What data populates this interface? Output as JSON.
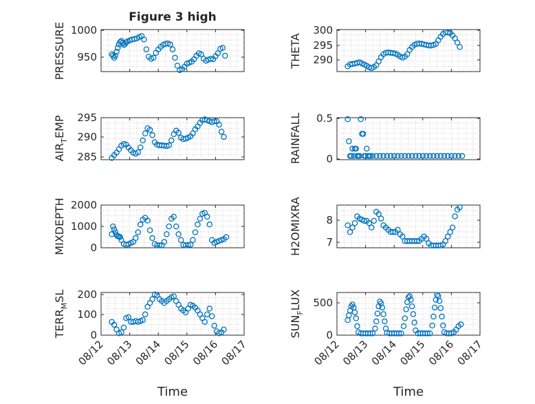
{
  "colors": {
    "marker": "#0072BD",
    "axis": "#262626",
    "grid": "#bdbdbd"
  },
  "chart_data": [
    {
      "type": "scatter",
      "title": "Figure 3 high",
      "ylabel": "PRESSURE",
      "xlim": [
        "08/12",
        "08/17"
      ],
      "ylim": [
        920,
        1005
      ],
      "yticks": [
        950,
        1000
      ],
      "x": [
        "08/12 09:00",
        "08/12 10:00",
        "08/12 11:00",
        "08/12 12:00",
        "08/12 13:00",
        "08/12 14:00",
        "08/12 15:00",
        "08/12 16:00",
        "08/12 17:00",
        "08/12 18:00",
        "08/12 19:00",
        "08/12 20:00",
        "08/12 21:00",
        "08/12 22:00",
        "08/13 00:00",
        "08/13 02:00",
        "08/13 04:00",
        "08/13 06:00",
        "08/13 08:00",
        "08/13 10:00",
        "08/13 12:00",
        "08/13 14:00",
        "08/13 16:00",
        "08/13 18:00",
        "08/13 20:00",
        "08/13 22:00",
        "08/14 00:00",
        "08/14 02:00",
        "08/14 04:00",
        "08/14 06:00",
        "08/14 08:00",
        "08/14 10:00",
        "08/14 12:00",
        "08/14 14:00",
        "08/14 16:00",
        "08/14 18:00",
        "08/14 20:00",
        "08/14 22:00",
        "08/15 00:00",
        "08/15 02:00",
        "08/15 04:00",
        "08/15 06:00",
        "08/15 08:00",
        "08/15 10:00",
        "08/15 12:00",
        "08/15 14:00",
        "08/15 16:00",
        "08/15 18:00",
        "08/15 20:00",
        "08/15 22:00",
        "08/16 00:00",
        "08/16 02:00",
        "08/16 04:00",
        "08/16 06:00",
        "08/16 08:00"
      ],
      "y": [
        955,
        952,
        948,
        952,
        960,
        968,
        975,
        980,
        982,
        978,
        974,
        976,
        979,
        981,
        983,
        985,
        986,
        987,
        990,
        992,
        985,
        965,
        950,
        946,
        948,
        958,
        965,
        970,
        974,
        976,
        977,
        975,
        965,
        948,
        932,
        923,
        925,
        930,
        936,
        938,
        940,
        945,
        952,
        957,
        955,
        946,
        942,
        944,
        946,
        945,
        951,
        957,
        966,
        968,
        952
      ]
    },
    {
      "type": "scatter",
      "ylabel": "THETA",
      "xlim": [
        "08/12",
        "08/17"
      ],
      "ylim": [
        286,
        300.5
      ],
      "yticks": [
        290,
        295,
        300
      ],
      "x": [
        "08/12 09:00",
        "08/12 11:00",
        "08/12 13:00",
        "08/12 15:00",
        "08/12 17:00",
        "08/12 19:00",
        "08/12 21:00",
        "08/12 23:00",
        "08/13 01:00",
        "08/13 03:00",
        "08/13 05:00",
        "08/13 07:00",
        "08/13 09:00",
        "08/13 11:00",
        "08/13 13:00",
        "08/13 15:00",
        "08/13 17:00",
        "08/13 19:00",
        "08/13 21:00",
        "08/13 23:00",
        "08/14 01:00",
        "08/14 03:00",
        "08/14 05:00",
        "08/14 07:00",
        "08/14 09:00",
        "08/14 11:00",
        "08/14 13:00",
        "08/14 15:00",
        "08/14 17:00",
        "08/14 19:00",
        "08/14 21:00",
        "08/14 23:00",
        "08/15 01:00",
        "08/15 03:00",
        "08/15 05:00",
        "08/15 07:00",
        "08/15 09:00",
        "08/15 11:00",
        "08/15 13:00",
        "08/15 15:00",
        "08/15 17:00",
        "08/15 19:00",
        "08/15 21:00",
        "08/15 23:00",
        "08/16 01:00",
        "08/16 03:00",
        "08/16 05:00",
        "08/16 07:00"
      ],
      "y": [
        287.8,
        288.5,
        288.6,
        288.8,
        289,
        289.2,
        288.8,
        288.4,
        288,
        287.5,
        287.2,
        287.6,
        288.2,
        289.5,
        291,
        292,
        292.5,
        292.6,
        292.5,
        292.4,
        292.2,
        291.8,
        291.2,
        290.8,
        291.2,
        292,
        293.5,
        294.5,
        295.2,
        295.6,
        295.7,
        295.6,
        295.4,
        295.2,
        295,
        295,
        295.2,
        295.6,
        296.8,
        298,
        299,
        299.6,
        299.5,
        299.3,
        298.5,
        297.5,
        296,
        294.5
      ]
    },
    {
      "type": "scatter",
      "ylabel": "AIR_TEMP",
      "xlim": [
        "08/12",
        "08/17"
      ],
      "ylim": [
        283.5,
        295.5
      ],
      "yticks": [
        285,
        290,
        295
      ],
      "x": [
        "08/12 09:00",
        "08/12 11:00",
        "08/12 13:00",
        "08/12 15:00",
        "08/12 17:00",
        "08/12 19:00",
        "08/12 21:00",
        "08/12 23:00",
        "08/13 01:00",
        "08/13 03:00",
        "08/13 05:00",
        "08/13 07:00",
        "08/13 09:00",
        "08/13 11:00",
        "08/13 13:00",
        "08/13 15:00",
        "08/13 17:00",
        "08/13 19:00",
        "08/13 21:00",
        "08/13 23:00",
        "08/14 01:00",
        "08/14 03:00",
        "08/14 05:00",
        "08/14 07:00",
        "08/14 09:00",
        "08/14 11:00",
        "08/14 13:00",
        "08/14 15:00",
        "08/14 17:00",
        "08/14 19:00",
        "08/14 21:00",
        "08/14 23:00",
        "08/15 01:00",
        "08/15 03:00",
        "08/15 05:00",
        "08/15 07:00",
        "08/15 09:00",
        "08/15 11:00",
        "08/15 13:00",
        "08/15 15:00",
        "08/15 17:00",
        "08/15 19:00",
        "08/15 21:00",
        "08/15 23:00",
        "08/16 01:00",
        "08/16 03:00",
        "08/16 05:00",
        "08/16 07:00"
      ],
      "y": [
        284,
        284.8,
        285.5,
        286.5,
        287.5,
        288,
        287.8,
        287,
        286.2,
        285.5,
        285.2,
        285.6,
        287,
        289,
        291,
        292.5,
        292,
        290.5,
        288.5,
        287.8,
        287.6,
        287.6,
        287.5,
        287.4,
        287.6,
        289,
        290.8,
        291.8,
        291.2,
        289.8,
        289.4,
        289.5,
        289.8,
        290.2,
        291,
        292.2,
        293,
        294,
        294.8,
        295,
        294.8,
        294.5,
        294.2,
        294.5,
        294.5,
        293.5,
        291.5,
        290
      ]
    },
    {
      "type": "scatter",
      "ylabel": "RAINFALL",
      "xlim": [
        "08/12",
        "08/17"
      ],
      "ylim": [
        -0.05,
        0.52
      ],
      "yticks": [
        0,
        0.5
      ],
      "x": [
        "08/12 09:00",
        "08/12 10:00",
        "08/12 11:00",
        "08/12 12:00",
        "08/12 13:00",
        "08/12 14:00",
        "08/12 15:00",
        "08/12 16:00",
        "08/12 17:00",
        "08/12 18:00",
        "08/12 19:00",
        "08/12 20:00",
        "08/12 21:00",
        "08/12 22:00",
        "08/12 23:00",
        "08/13 00:00",
        "08/13 01:00",
        "08/13 02:00",
        "08/13 03:00",
        "08/13 04:00",
        "08/13 06:00",
        "08/13 09:00",
        "08/13 12:00",
        "08/13 15:00",
        "08/13 18:00",
        "08/13 21:00",
        "08/14 00:00",
        "08/14 03:00",
        "08/14 06:00",
        "08/14 09:00",
        "08/14 12:00",
        "08/14 15:00",
        "08/14 18:00",
        "08/14 21:00",
        "08/15 00:00",
        "08/15 03:00",
        "08/15 06:00",
        "08/15 09:00",
        "08/15 12:00",
        "08/15 15:00",
        "08/15 18:00",
        "08/15 21:00",
        "08/16 00:00",
        "08/16 03:00",
        "08/16 06:00",
        "08/16 09:00"
      ],
      "y": [
        0.5,
        0.2,
        0,
        0,
        0.1,
        0,
        0.1,
        0.1,
        0,
        0,
        0,
        0.5,
        0.3,
        0.3,
        0,
        0,
        0.1,
        0,
        0,
        0,
        0,
        0,
        0,
        0,
        0,
        0,
        0,
        0,
        0,
        0,
        0,
        0,
        0,
        0,
        0,
        0,
        0,
        0,
        0,
        0,
        0,
        0,
        0,
        0,
        0,
        0
      ]
    },
    {
      "type": "scatter",
      "ylabel": "MIXDEPTH",
      "xlim": [
        "08/12",
        "08/17"
      ],
      "ylim": [
        -100,
        2100
      ],
      "yticks": [
        0,
        1000,
        2000
      ],
      "x": [
        "08/12 09:00",
        "08/12 10:00",
        "08/12 11:00",
        "08/12 12:00",
        "08/12 13:00",
        "08/12 14:00",
        "08/12 15:00",
        "08/12 16:00",
        "08/12 17:00",
        "08/12 19:00",
        "08/12 21:00",
        "08/12 23:00",
        "08/13 01:00",
        "08/13 03:00",
        "08/13 05:00",
        "08/13 07:00",
        "08/13 09:00",
        "08/13 11:00",
        "08/13 13:00",
        "08/13 15:00",
        "08/13 17:00",
        "08/13 19:00",
        "08/13 21:00",
        "08/13 23:00",
        "08/14 01:00",
        "08/14 03:00",
        "08/14 05:00",
        "08/14 07:00",
        "08/14 09:00",
        "08/14 11:00",
        "08/14 13:00",
        "08/14 15:00",
        "08/14 17:00",
        "08/14 19:00",
        "08/14 21:00",
        "08/14 23:00",
        "08/15 01:00",
        "08/15 03:00",
        "08/15 05:00",
        "08/15 07:00",
        "08/15 09:00",
        "08/15 11:00",
        "08/15 13:00",
        "08/15 15:00",
        "08/15 17:00",
        "08/15 19:00",
        "08/15 21:00",
        "08/15 23:00",
        "08/16 01:00",
        "08/16 03:00",
        "08/16 05:00",
        "08/16 07:00",
        "08/16 09:00"
      ],
      "y": [
        600,
        1000,
        850,
        700,
        550,
        500,
        480,
        450,
        300,
        100,
        60,
        80,
        150,
        200,
        400,
        700,
        1100,
        1350,
        1450,
        1300,
        800,
        400,
        100,
        30,
        20,
        30,
        200,
        600,
        1000,
        1400,
        1500,
        1000,
        600,
        300,
        50,
        30,
        40,
        60,
        300,
        700,
        1100,
        1400,
        1650,
        1700,
        1500,
        1100,
        300,
        150,
        200,
        250,
        300,
        350,
        450
      ]
    },
    {
      "type": "scatter",
      "ylabel": "H2OMIXRA",
      "xlim": [
        "08/12",
        "08/17"
      ],
      "ylim": [
        6.8,
        8.7
      ],
      "yticks": [
        7,
        8
      ],
      "x": [
        "08/12 09:00",
        "08/12 11:00",
        "08/12 13:00",
        "08/12 15:00",
        "08/12 17:00",
        "08/12 19:00",
        "08/12 21:00",
        "08/12 23:00",
        "08/13 01:00",
        "08/13 03:00",
        "08/13 05:00",
        "08/13 07:00",
        "08/13 09:00",
        "08/13 11:00",
        "08/13 13:00",
        "08/13 15:00",
        "08/13 17:00",
        "08/13 19:00",
        "08/13 21:00",
        "08/13 23:00",
        "08/14 01:00",
        "08/14 03:00",
        "08/14 05:00",
        "08/14 07:00",
        "08/14 09:00",
        "08/14 11:00",
        "08/14 13:00",
        "08/14 15:00",
        "08/14 17:00",
        "08/14 19:00",
        "08/14 21:00",
        "08/14 23:00",
        "08/15 01:00",
        "08/15 03:00",
        "08/15 05:00",
        "08/15 07:00",
        "08/15 09:00",
        "08/15 11:00",
        "08/15 13:00",
        "08/15 15:00",
        "08/15 17:00",
        "08/15 19:00",
        "08/15 21:00",
        "08/15 23:00",
        "08/16 01:00",
        "08/16 03:00",
        "08/16 05:00",
        "08/16 07:00"
      ],
      "y": [
        7.8,
        7.5,
        7.7,
        7.9,
        8.2,
        8.1,
        8.05,
        8.0,
        8.0,
        7.9,
        7.7,
        8.0,
        8.4,
        8.3,
        8.1,
        7.8,
        7.7,
        7.6,
        7.5,
        7.5,
        7.5,
        7.6,
        7.4,
        7.3,
        7.1,
        7.1,
        7.1,
        7.1,
        7.1,
        7.1,
        7.1,
        7.2,
        7.3,
        7.2,
        7.0,
        6.9,
        6.9,
        6.9,
        6.9,
        6.9,
        6.95,
        7.1,
        7.3,
        7.5,
        7.7,
        8.2,
        8.5,
        8.6
      ]
    },
    {
      "type": "scatter",
      "ylabel": "TERR_MSL",
      "xlim": [
        "08/12",
        "08/17"
      ],
      "ylim": [
        -10,
        215
      ],
      "yticks": [
        0,
        100,
        200
      ],
      "x": [
        "08/12 09:00",
        "08/12 11:00",
        "08/12 13:00",
        "08/12 15:00",
        "08/12 17:00",
        "08/12 19:00",
        "08/12 21:00",
        "08/12 23:00",
        "08/13 01:00",
        "08/13 03:00",
        "08/13 05:00",
        "08/13 07:00",
        "08/13 09:00",
        "08/13 11:00",
        "08/13 13:00",
        "08/13 15:00",
        "08/13 17:00",
        "08/13 19:00",
        "08/13 21:00",
        "08/13 23:00",
        "08/14 01:00",
        "08/14 03:00",
        "08/14 05:00",
        "08/14 07:00",
        "08/14 09:00",
        "08/14 11:00",
        "08/14 13:00",
        "08/14 15:00",
        "08/14 17:00",
        "08/14 19:00",
        "08/14 21:00",
        "08/14 23:00",
        "08/15 01:00",
        "08/15 03:00",
        "08/15 05:00",
        "08/15 07:00",
        "08/15 09:00",
        "08/15 11:00",
        "08/15 13:00",
        "08/15 15:00",
        "08/15 17:00",
        "08/15 19:00",
        "08/15 21:00",
        "08/15 23:00",
        "08/16 01:00",
        "08/16 03:00",
        "08/16 05:00",
        "08/16 07:00"
      ],
      "y": [
        60,
        45,
        20,
        0,
        5,
        30,
        80,
        85,
        60,
        60,
        65,
        60,
        65,
        70,
        100,
        140,
        160,
        180,
        205,
        200,
        180,
        170,
        160,
        170,
        180,
        190,
        195,
        170,
        150,
        130,
        120,
        110,
        130,
        150,
        145,
        135,
        120,
        100,
        80,
        60,
        100,
        130,
        90,
        40,
        10,
        0,
        5,
        20
      ]
    },
    {
      "type": "scatter",
      "ylabel": "SUN_FLUX",
      "xlim": [
        "08/12",
        "08/17"
      ],
      "ylim": [
        -30,
        680
      ],
      "yticks": [
        0,
        500
      ],
      "x": [
        "08/12 09:00",
        "08/12 10:00",
        "08/12 11:00",
        "08/12 12:00",
        "08/12 13:00",
        "08/12 14:00",
        "08/12 15:00",
        "08/12 16:00",
        "08/12 17:00",
        "08/12 18:00",
        "08/12 20:00",
        "08/12 22:00",
        "08/13 00:00",
        "08/13 02:00",
        "08/13 04:00",
        "08/13 06:00",
        "08/13 08:00",
        "08/13 09:00",
        "08/13 10:00",
        "08/13 11:00",
        "08/13 12:00",
        "08/13 13:00",
        "08/13 14:00",
        "08/13 15:00",
        "08/13 16:00",
        "08/13 17:00",
        "08/13 18:00",
        "08/13 20:00",
        "08/13 22:00",
        "08/14 00:00",
        "08/14 02:00",
        "08/14 04:00",
        "08/14 06:00",
        "08/14 08:00",
        "08/14 09:00",
        "08/14 10:00",
        "08/14 11:00",
        "08/14 12:00",
        "08/14 13:00",
        "08/14 14:00",
        "08/14 15:00",
        "08/14 16:00",
        "08/14 17:00",
        "08/14 18:00",
        "08/14 20:00",
        "08/14 22:00",
        "08/15 00:00",
        "08/15 02:00",
        "08/15 04:00",
        "08/15 06:00",
        "08/15 08:00",
        "08/15 09:00",
        "08/15 10:00",
        "08/15 11:00",
        "08/15 12:00",
        "08/15 13:00",
        "08/15 14:00",
        "08/15 15:00",
        "08/15 16:00",
        "08/15 17:00",
        "08/15 18:00",
        "08/15 20:00",
        "08/15 22:00",
        "08/16 00:00",
        "08/16 02:00",
        "08/16 04:00",
        "08/16 06:00",
        "08/16 08:00"
      ],
      "y": [
        220,
        300,
        380,
        450,
        480,
        430,
        350,
        250,
        120,
        20,
        0,
        0,
        0,
        0,
        0,
        0,
        80,
        200,
        330,
        450,
        530,
        500,
        430,
        320,
        200,
        80,
        10,
        0,
        0,
        0,
        0,
        0,
        0,
        120,
        250,
        400,
        520,
        600,
        620,
        560,
        450,
        320,
        180,
        50,
        0,
        0,
        0,
        0,
        0,
        0,
        130,
        280,
        430,
        560,
        640,
        620,
        540,
        420,
        280,
        130,
        20,
        0,
        0,
        0,
        20,
        60,
        120,
        150
      ]
    }
  ],
  "x_axis": {
    "label": "Time",
    "ticks": [
      "08/12",
      "08/13",
      "08/14",
      "08/15",
      "08/16",
      "08/17"
    ]
  }
}
